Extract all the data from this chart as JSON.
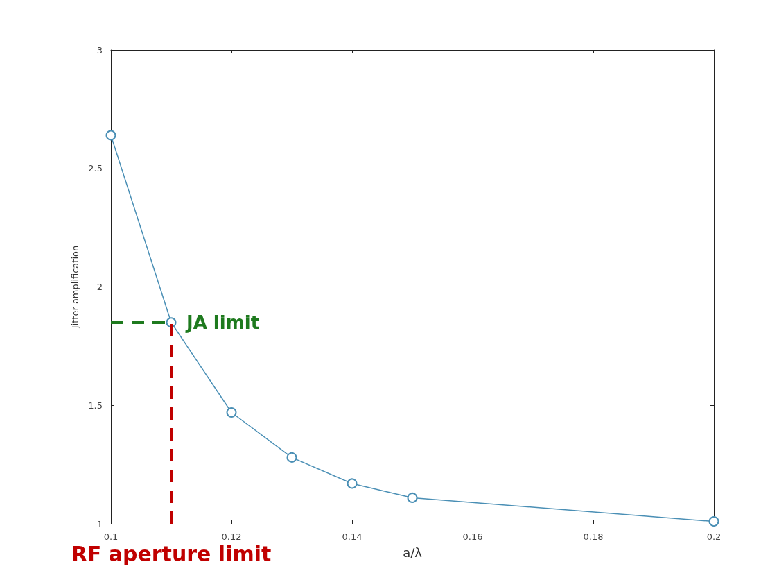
{
  "chart_data": {
    "type": "line",
    "xlabel": "a/λ",
    "ylabel": "Jitter amplification",
    "x": [
      0.1,
      0.11,
      0.12,
      0.13,
      0.14,
      0.15,
      0.2
    ],
    "series": [
      {
        "color": "#4a8fb5",
        "values": [
          2.64,
          1.85,
          1.47,
          1.28,
          1.17,
          1.11,
          1.01
        ]
      }
    ],
    "xlim": [
      0.1,
      0.2
    ],
    "xticks": [
      0.1,
      0.12,
      0.14,
      0.16,
      0.18,
      0.2
    ],
    "ylim": [
      1,
      3
    ],
    "yticks": [
      1,
      1.5,
      2,
      2.5,
      3
    ],
    "ref_lines": [
      {
        "axis": "x",
        "value": 0.11,
        "label": "RF aperture limit",
        "color": "#c00000",
        "line_style": "dashed"
      },
      {
        "axis": "y",
        "value": 1.85,
        "label": "JA limit",
        "color": "#1e7a1e",
        "line_style": "dashed"
      }
    ],
    "grid": false,
    "marker": "circle",
    "line_style": "solid"
  }
}
